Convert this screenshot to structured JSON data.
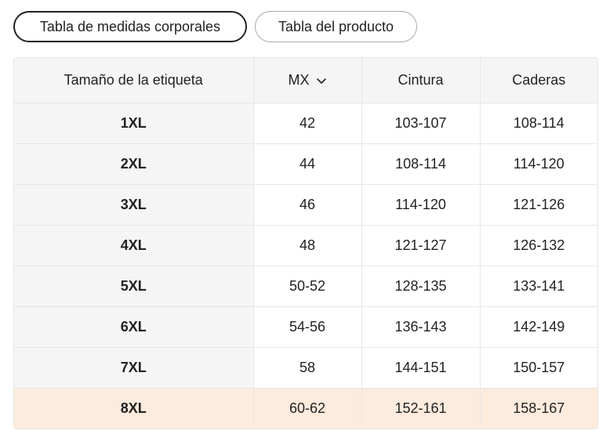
{
  "tabs": {
    "body_measurements": "Tabla de medidas corporales",
    "product": "Tabla del producto"
  },
  "table": {
    "headers": {
      "size_label": "Tamaño de la etiqueta",
      "region": "MX",
      "waist": "Cintura",
      "hips": "Caderas"
    },
    "rows": [
      {
        "size": "1XL",
        "mx": "42",
        "waist": "103-107",
        "hips": "108-114"
      },
      {
        "size": "2XL",
        "mx": "44",
        "waist": "108-114",
        "hips": "114-120"
      },
      {
        "size": "3XL",
        "mx": "46",
        "waist": "114-120",
        "hips": "121-126"
      },
      {
        "size": "4XL",
        "mx": "48",
        "waist": "121-127",
        "hips": "126-132"
      },
      {
        "size": "5XL",
        "mx": "50-52",
        "waist": "128-135",
        "hips": "133-141"
      },
      {
        "size": "6XL",
        "mx": "54-56",
        "waist": "136-143",
        "hips": "142-149"
      },
      {
        "size": "7XL",
        "mx": "58",
        "waist": "144-151",
        "hips": "150-157"
      },
      {
        "size": "8XL",
        "mx": "60-62",
        "waist": "152-161",
        "hips": "158-167"
      }
    ],
    "highlight_color": "#fdebdd",
    "header_bg": "#f5f5f5"
  },
  "icons": {
    "region_dropdown": "chevron-down-icon"
  }
}
